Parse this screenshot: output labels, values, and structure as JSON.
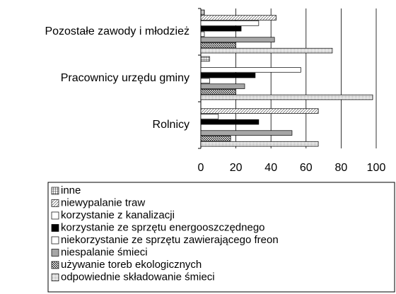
{
  "chart_data": {
    "type": "bar",
    "orientation": "horizontal",
    "categories": [
      "Pozostałe zawody i młodzież",
      "Pracownicy urzędu gminy",
      "Rolnicy"
    ],
    "series": [
      {
        "name": "inne",
        "color": "#ffffff",
        "pattern": "grid",
        "values": [
          2,
          5,
          0
        ]
      },
      {
        "name": "niewypalanie traw",
        "color": "#ffffff",
        "pattern": "diag-light",
        "values": [
          43,
          0,
          67
        ]
      },
      {
        "name": "korzystanie z kanalizacji",
        "color": "#ffffff",
        "pattern": "none",
        "values": [
          33,
          57,
          10
        ]
      },
      {
        "name": "korzystanie ze sprzętu energooszczędnego",
        "color": "#000000",
        "pattern": "none",
        "values": [
          23,
          31,
          33
        ]
      },
      {
        "name": "niekorzystanie ze sprzętu zawierającego freon",
        "color": "#ffffff",
        "pattern": "none",
        "values": [
          2,
          5,
          0
        ]
      },
      {
        "name": "niespalanie śmieci",
        "color": "#a6a6a6",
        "pattern": "none",
        "values": [
          42,
          25,
          52
        ]
      },
      {
        "name": "używanie toreb ekologicznych",
        "color": "#ffffff",
        "pattern": "diag-dense",
        "values": [
          20,
          20,
          17
        ]
      },
      {
        "name": "odpowiednie składowanie śmieci",
        "color": "#ffffff",
        "pattern": "dots",
        "values": [
          75,
          98,
          67
        ]
      }
    ],
    "xlim": [
      0,
      100
    ],
    "xticks": [
      0,
      20,
      40,
      60,
      80,
      100
    ],
    "grid": true
  }
}
